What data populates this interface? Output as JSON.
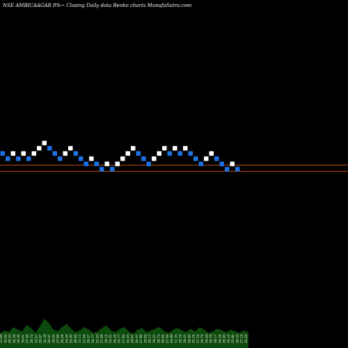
{
  "header": {
    "title": "NSE AMBICAAGAR 8%~  Closing Daily data  Renko  charts MunafaSutra.com"
  },
  "chart_data": {
    "type": "renko",
    "title": "NSE AMBICAAGAR 8%~  Closing Daily data  Renko  charts MunafaSutra.com",
    "colors": {
      "up": "#ffffff",
      "down": "#1c73e8",
      "line": "#c0541a",
      "volume": "#0d4a0d",
      "background": "#000000"
    },
    "brick_levels": [
      4,
      3,
      4,
      3,
      4,
      3,
      4,
      5,
      6,
      5,
      4,
      3,
      4,
      5,
      4,
      3,
      2,
      3,
      2,
      1,
      2,
      1,
      2,
      3,
      4,
      5,
      4,
      3,
      2,
      3,
      4,
      5,
      4,
      5,
      4,
      5,
      4,
      3,
      2,
      3,
      4,
      3,
      2,
      1,
      2,
      1
    ],
    "brick_directions": [
      "down",
      "down",
      "up",
      "down",
      "up",
      "down",
      "up",
      "up",
      "up",
      "down",
      "down",
      "down",
      "up",
      "up",
      "down",
      "down",
      "down",
      "up",
      "down",
      "down",
      "up",
      "down",
      "up",
      "up",
      "up",
      "up",
      "down",
      "down",
      "down",
      "up",
      "up",
      "up",
      "down",
      "up",
      "down",
      "up",
      "down",
      "down",
      "down",
      "up",
      "up",
      "down",
      "down",
      "down",
      "up",
      "down"
    ],
    "reference_lines": [
      {
        "name": "upper",
        "level": 2.2
      },
      {
        "name": "lower",
        "level": 1.0
      }
    ],
    "volume_labels": [
      "31.68",
      "30.92",
      "28.50",
      "26.58",
      "29.36",
      "30.61",
      "27.46",
      "29.72",
      "33.07",
      "29.87",
      "32.38",
      "28.41",
      "30.05",
      "27.66",
      "26.04",
      "29.38",
      "25.95",
      "28.62",
      "31.11",
      "27.09",
      "26.27",
      "30.77",
      "25.55",
      "27.48",
      "29.12",
      "32.01",
      "26.34",
      "24.77",
      "27.80",
      "30.55",
      "28.61",
      "24.41",
      "27.88",
      "29.94",
      "26.17",
      "30.21",
      "28.72",
      "26.44",
      "27.69",
      "29.88",
      "31.33",
      "26.16",
      "28.01",
      "29.80",
      "25.24",
      "27.52",
      "29.70",
      "30.48",
      "26.76",
      "28.17",
      "26.24",
      "28.40",
      "30.10",
      "25.60",
      "26.35",
      "27.14",
      "25.29"
    ],
    "volume_profile": [
      0.35,
      0.42,
      0.38,
      0.5,
      0.44,
      0.4,
      0.55,
      0.48,
      0.36,
      0.52,
      0.7,
      0.6,
      0.45,
      0.4,
      0.5,
      0.58,
      0.46,
      0.38,
      0.42,
      0.5,
      0.44,
      0.36,
      0.4,
      0.48,
      0.54,
      0.42,
      0.38,
      0.46,
      0.5,
      0.4,
      0.34,
      0.44,
      0.48,
      0.38,
      0.42,
      0.46,
      0.5,
      0.4,
      0.36,
      0.44,
      0.48,
      0.42,
      0.38,
      0.46,
      0.4,
      0.5,
      0.44,
      0.36,
      0.4,
      0.46,
      0.42,
      0.38,
      0.44,
      0.4,
      0.36,
      0.42,
      0.38
    ]
  }
}
